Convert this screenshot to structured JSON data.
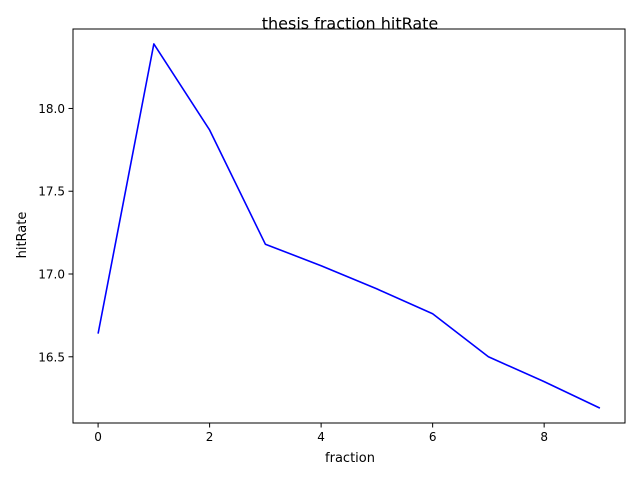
{
  "chart_data": {
    "type": "line",
    "title": "thesis fraction hitRate",
    "xlabel": "fraction",
    "ylabel": "hitRate",
    "xlim": [
      -0.45,
      9.45
    ],
    "ylim": [
      16.1,
      18.48
    ],
    "xticks": [
      "0",
      "2",
      "4",
      "6",
      "8"
    ],
    "yticks": [
      "16.5",
      "17.0",
      "17.5",
      "18.0"
    ],
    "grid": false,
    "series": [
      {
        "color": "#0000ff",
        "x": [
          0,
          1,
          2,
          3,
          4,
          5,
          6,
          7,
          8,
          9
        ],
        "y": [
          16.64,
          18.39,
          17.87,
          17.18,
          17.05,
          16.91,
          16.76,
          16.5,
          16.35,
          16.19
        ]
      }
    ]
  }
}
